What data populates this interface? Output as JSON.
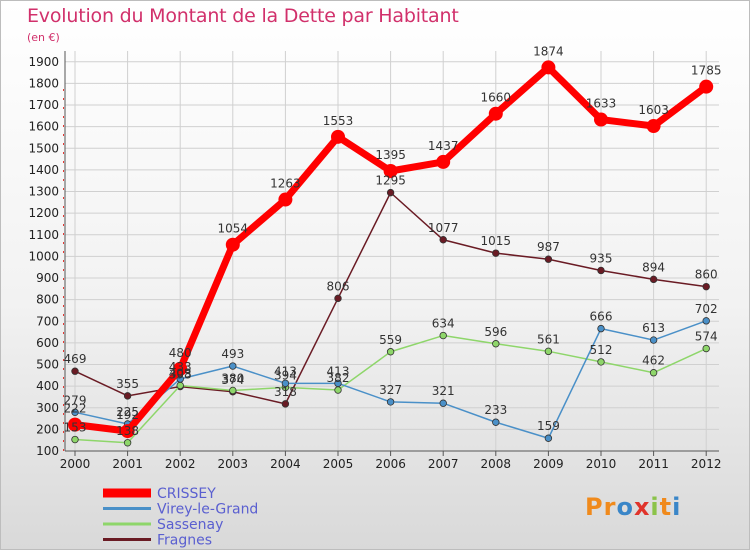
{
  "title": "Evolution du Montant de la Dette par Habitant",
  "unit": "(en €)",
  "logo": "Proxiti",
  "chart_data": {
    "type": "line",
    "x": [
      "2000",
      "2001",
      "2002",
      "2003",
      "2004",
      "2005",
      "2006",
      "2007",
      "2008",
      "2009",
      "2010",
      "2011",
      "2012"
    ],
    "yticks": [
      100,
      200,
      300,
      400,
      500,
      600,
      700,
      800,
      900,
      1000,
      1100,
      1200,
      1300,
      1400,
      1500,
      1600,
      1700,
      1800,
      1900
    ],
    "ylim": [
      100,
      1950
    ],
    "grid": true,
    "legend": "bottom-left",
    "series": [
      {
        "name": "CRISSEY",
        "color": "#ff0000",
        "values": [
          222,
          192,
          480,
          1054,
          1263,
          1553,
          1395,
          1437,
          1660,
          1874,
          1633,
          1603,
          1785
        ]
      },
      {
        "name": "Virey-le-Grand",
        "color": "#4a90c8",
        "values": [
          279,
          225,
          433,
          493,
          413,
          413,
          327,
          321,
          233,
          159,
          666,
          613,
          702
        ]
      },
      {
        "name": "Sassenay",
        "color": "#8ed66a",
        "values": [
          153,
          138,
          403,
          380,
          394,
          382,
          559,
          634,
          596,
          561,
          512,
          462,
          574
        ]
      },
      {
        "name": "Fragnes",
        "color": "#6a1b24",
        "values": [
          469,
          355,
          398,
          374,
          318,
          806,
          1295,
          1077,
          1015,
          987,
          935,
          894,
          860
        ]
      }
    ]
  }
}
